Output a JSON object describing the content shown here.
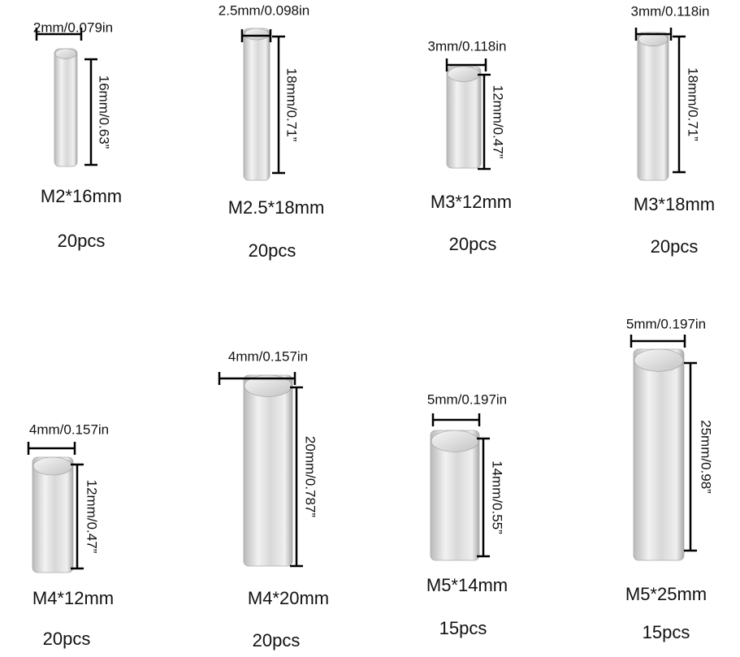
{
  "items": [
    {
      "diameter": "2mm/0.079in",
      "length": "16mm/0.63”",
      "name": "M2*16mm",
      "quantity": "20pcs"
    },
    {
      "diameter": "2.5mm/0.098in",
      "length": "18mm/0.71”",
      "name": "M2.5*18mm",
      "quantity": "20pcs"
    },
    {
      "diameter": "3mm/0.118in",
      "length": "12mm/0.47”",
      "name": "M3*12mm",
      "quantity": "20pcs"
    },
    {
      "diameter": "3mm/0.118in",
      "length": "18mm/0.71”",
      "name": "M3*18mm",
      "quantity": "20pcs"
    },
    {
      "diameter": "4mm/0.157in",
      "length": "12mm/0.47”",
      "name": "M4*12mm",
      "quantity": "20pcs"
    },
    {
      "diameter": "4mm/0.157in",
      "length": "20mm/0.787”",
      "name": "M4*20mm",
      "quantity": "20pcs"
    },
    {
      "diameter": "5mm/0.197in",
      "length": "14mm/0.55”",
      "name": "M5*14mm",
      "quantity": "15pcs"
    },
    {
      "diameter": "5mm/0.197in",
      "length": "25mm/0.98”",
      "name": "M5*25mm",
      "quantity": "15pcs"
    }
  ]
}
